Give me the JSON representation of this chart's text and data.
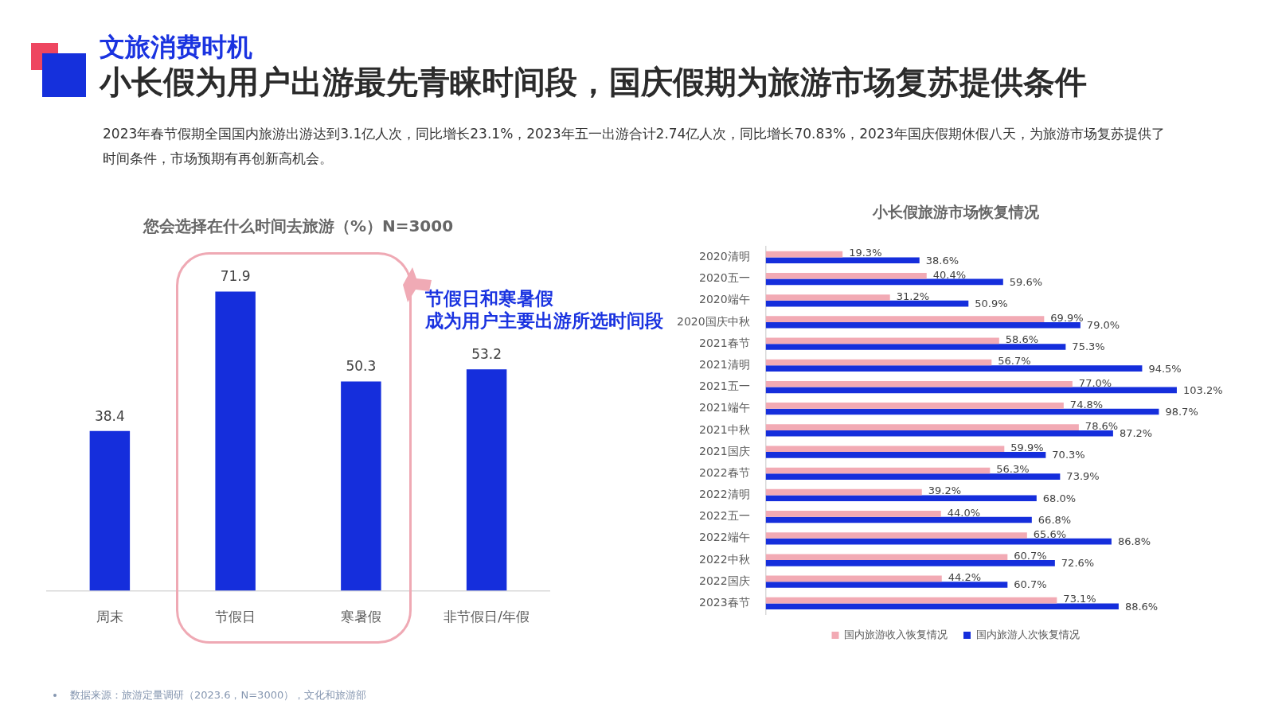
{
  "chart_data": [
    {
      "type": "bar",
      "title": "您会选择在什么时间去旅游（%）N=3000",
      "categories": [
        "周末",
        "节假日",
        "寒暑假",
        "非节假日/年假"
      ],
      "values": [
        38.4,
        71.9,
        50.3,
        53.2
      ],
      "color": "#152edc",
      "data_labels": true,
      "annotations": [
        "文旅消费时机",
        "小长假为用户出游最先青睐时间段，国庆假期为旅游市场复苏提供条件",
        "2023年春节假期全国国内旅游出游达到3.1亿人次，同比增长23.1%，2023年五一出游合计2.74亿人次，同比增长70.83%，2023年国庆假期休假八天，为旅游市场复苏提供了时间条件，市场预期有再创新高机会。",
        "节假日和寒暑假",
        "成为用户主要出游所选时间段",
        "数据来源：旅游定量调研（2023.6，N=3000），文化和旅游部"
      ]
    },
    {
      "type": "bar",
      "title": "小长假旅游市场恢复情况",
      "orientation": "horizontal",
      "legend": "bottom",
      "categories": [
        "2020清明",
        "2020五一",
        "2020端午",
        "2020国庆中秋",
        "2021春节",
        "2021清明",
        "2021五一",
        "2021端午",
        "2021中秋",
        "2021国庆",
        "2022春节",
        "2022清明",
        "2022五一",
        "2022端午",
        "2022中秋",
        "2022国庆",
        "2023春节"
      ],
      "series": [
        {
          "name": "国内旅游收入恢复情况",
          "color": "#f2aab4",
          "values": [
            19.3,
            40.4,
            31.2,
            69.9,
            58.6,
            56.7,
            77.0,
            74.8,
            78.6,
            59.9,
            56.3,
            39.2,
            44.0,
            65.6,
            60.7,
            44.2,
            73.1
          ],
          "value_labels": [
            "19.3%",
            "40.4%",
            "31.2%",
            "69.9%",
            "58.6%",
            "56.7%",
            "77.0%",
            "74.8%",
            "78.6%",
            "59.9%",
            "56.3%",
            "39.2%",
            "44.0%",
            "65.6%",
            "60.7%",
            "44.2%",
            "73.1%"
          ]
        },
        {
          "name": "国内旅游人次恢复情况",
          "color": "#152edc",
          "values": [
            38.6,
            59.6,
            50.9,
            79.0,
            75.3,
            94.5,
            103.2,
            98.7,
            87.2,
            70.3,
            73.9,
            68.0,
            66.8,
            86.8,
            72.6,
            60.7,
            88.6
          ],
          "value_labels": [
            "38.6%",
            "59.6%",
            "50.9%",
            "79.0%",
            "75.3%",
            "94.5%",
            "103.2%",
            "98.7%",
            "87.2%",
            "70.3%",
            "73.9%",
            "68.0%",
            "66.8%",
            "86.8%",
            "72.6%",
            "60.7%",
            "88.6%"
          ]
        }
      ]
    }
  ]
}
